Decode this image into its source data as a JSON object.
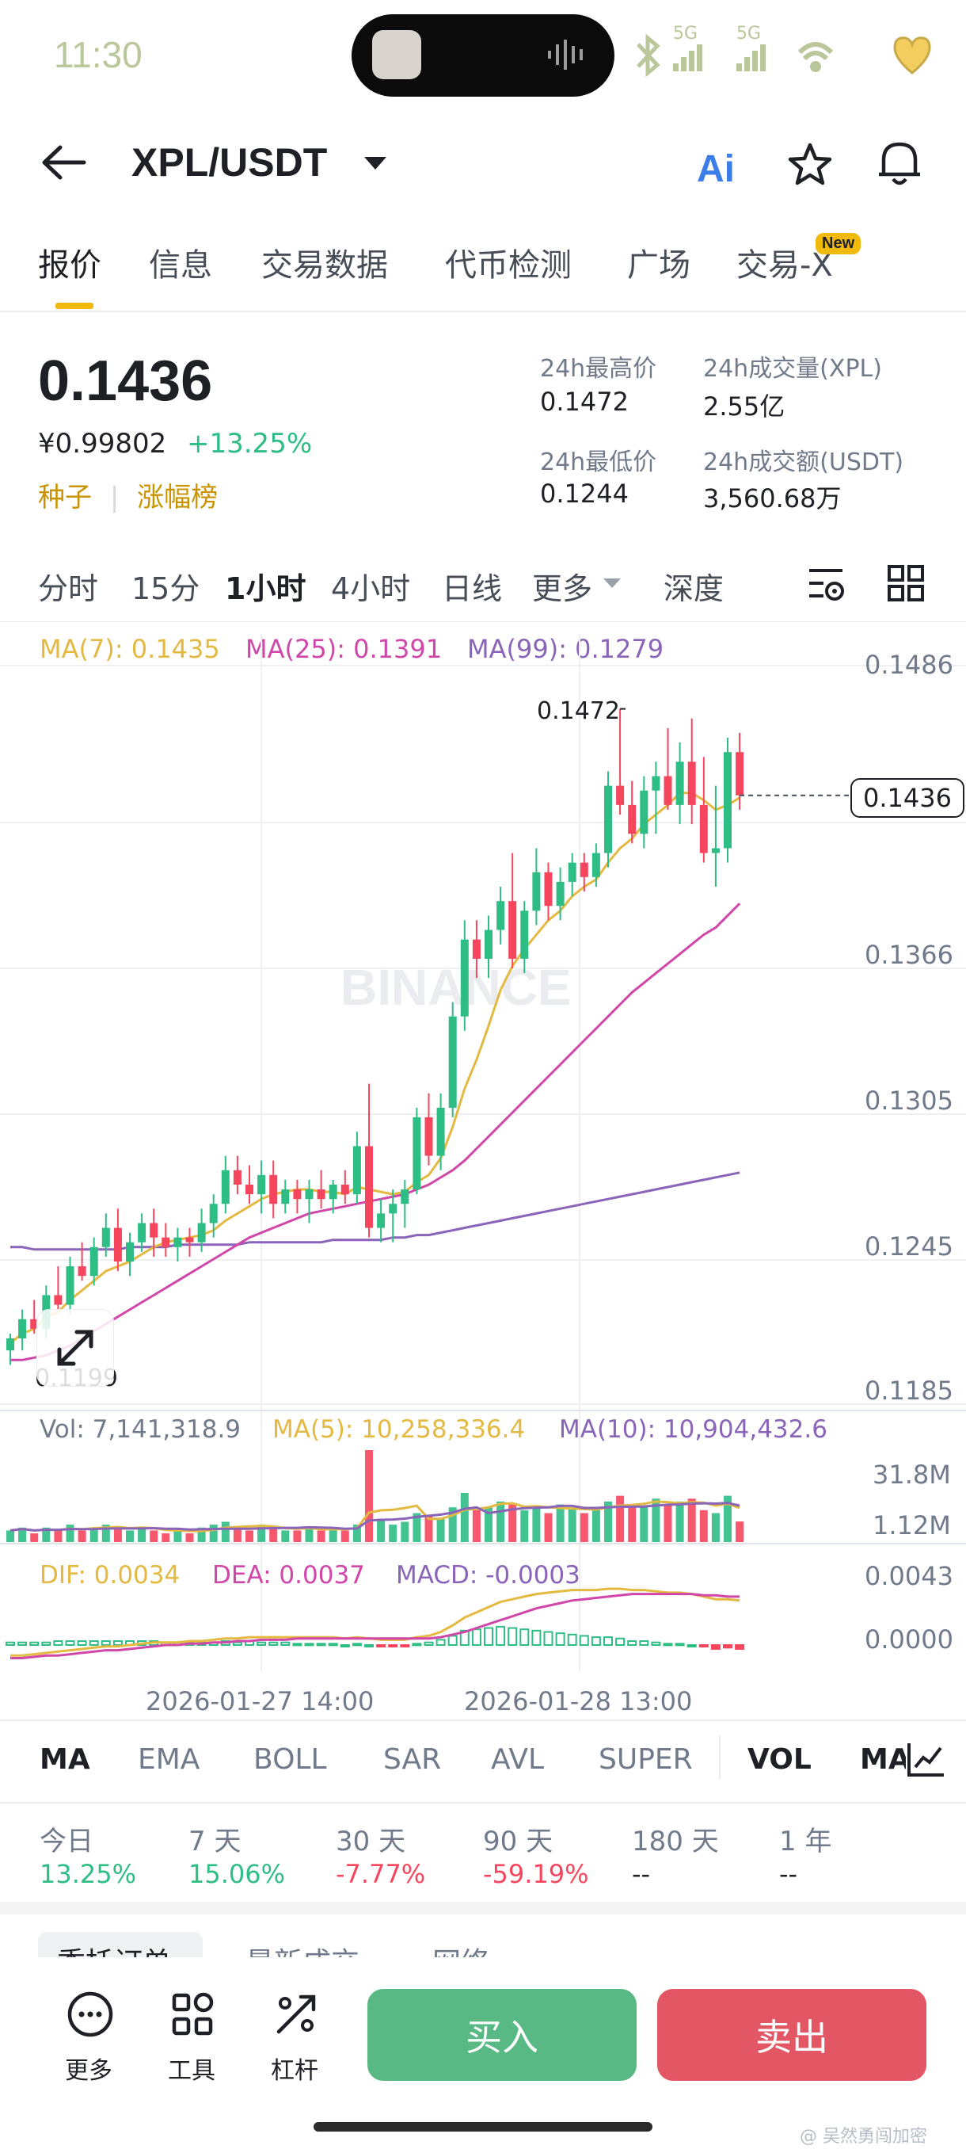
{
  "status": {
    "time": "11:30",
    "network_a": "5G",
    "network_b": "5G"
  },
  "header": {
    "pair": "XPL/USDT",
    "ai_label": "Ai"
  },
  "tabs": [
    {
      "label": "报价"
    },
    {
      "label": "信息"
    },
    {
      "label": "交易数据"
    },
    {
      "label": "代币检测"
    },
    {
      "label": "广场"
    },
    {
      "label": "交易-X"
    }
  ],
  "new_badge": "New",
  "price": {
    "last": "0.1436",
    "cny": "¥0.99802",
    "change": "+13.25%",
    "tag1": "种子",
    "tag_sep": "|",
    "tag2": "涨幅榜"
  },
  "stats": {
    "high_label": "24h最高价",
    "high": "0.1472",
    "vol_label": "24h成交量(XPL)",
    "vol": "2.55亿",
    "low_label": "24h最低价",
    "low": "0.1244",
    "amount_label": "24h成交额(USDT)",
    "amount": "3,560.68万"
  },
  "intervals": [
    "分时",
    "15分",
    "1小时",
    "4小时",
    "日线",
    "更多",
    "深度"
  ],
  "active_interval": "1小时",
  "ma_legend": {
    "ma7": "MA(7): 0.1435",
    "ma25": "MA(25): 0.1391",
    "ma99": "MA(99): 0.1279"
  },
  "colors": {
    "up": "#2ebd85",
    "down": "#f6465d",
    "ma7": "#e4b942",
    "ma25": "#d046a9",
    "ma99": "#8a64b8",
    "buy": "#58b985",
    "sell": "#e35664",
    "accent": "#f0b90b"
  },
  "chart_data": {
    "type": "candlestick",
    "price_axis_ticks": [
      "0.1486",
      "0.1366",
      "0.1305",
      "0.1245",
      "0.1185"
    ],
    "current_price_label": "0.1436",
    "high_marker": "0.1472",
    "low_marker": "0.1199",
    "time_labels": [
      "2026-01-27 14:00",
      "2026-01-28 13:00"
    ],
    "watermark": "BINANCE",
    "candles": [
      [
        0.1205,
        0.1212,
        0.1199,
        0.121
      ],
      [
        0.121,
        0.1222,
        0.1205,
        0.1218
      ],
      [
        0.1218,
        0.1226,
        0.1212,
        0.1214
      ],
      [
        0.1214,
        0.1232,
        0.121,
        0.1228
      ],
      [
        0.1228,
        0.124,
        0.1222,
        0.1224
      ],
      [
        0.1224,
        0.1244,
        0.122,
        0.124
      ],
      [
        0.124,
        0.125,
        0.1234,
        0.1236
      ],
      [
        0.1236,
        0.1252,
        0.1232,
        0.1248
      ],
      [
        0.1248,
        0.1262,
        0.1244,
        0.1256
      ],
      [
        0.1256,
        0.1264,
        0.1238,
        0.1242
      ],
      [
        0.1242,
        0.1254,
        0.1236,
        0.125
      ],
      [
        0.125,
        0.1262,
        0.1246,
        0.1258
      ],
      [
        0.1258,
        0.1264,
        0.1244,
        0.1252
      ],
      [
        0.1252,
        0.1258,
        0.1244,
        0.1248
      ],
      [
        0.1248,
        0.1256,
        0.1242,
        0.1252
      ],
      [
        0.1252,
        0.1256,
        0.1244,
        0.125
      ],
      [
        0.125,
        0.1264,
        0.1246,
        0.1258
      ],
      [
        0.1258,
        0.127,
        0.1252,
        0.1266
      ],
      [
        0.1266,
        0.1286,
        0.1262,
        0.128
      ],
      [
        0.128,
        0.1286,
        0.127,
        0.1274
      ],
      [
        0.1274,
        0.1282,
        0.1266,
        0.127
      ],
      [
        0.127,
        0.1284,
        0.1262,
        0.1278
      ],
      [
        0.1278,
        0.1284,
        0.126,
        0.1266
      ],
      [
        0.1266,
        0.1276,
        0.1262,
        0.1272
      ],
      [
        0.1272,
        0.1276,
        0.1262,
        0.1268
      ],
      [
        0.1268,
        0.1276,
        0.1258,
        0.1272
      ],
      [
        0.1272,
        0.128,
        0.1264,
        0.1268
      ],
      [
        0.1268,
        0.1276,
        0.1262,
        0.1274
      ],
      [
        0.1274,
        0.128,
        0.1266,
        0.127
      ],
      [
        0.127,
        0.1296,
        0.1266,
        0.129
      ],
      [
        0.129,
        0.1316,
        0.1252,
        0.1256
      ],
      [
        0.1256,
        0.1268,
        0.125,
        0.1262
      ],
      [
        0.1262,
        0.1272,
        0.125,
        0.1266
      ],
      [
        0.1266,
        0.1276,
        0.1256,
        0.1272
      ],
      [
        0.1272,
        0.1306,
        0.127,
        0.1302
      ],
      [
        0.1302,
        0.1312,
        0.1282,
        0.1286
      ],
      [
        0.1286,
        0.1312,
        0.128,
        0.1306
      ],
      [
        0.1306,
        0.135,
        0.1302,
        0.1344
      ],
      [
        0.1344,
        0.1384,
        0.1338,
        0.1376
      ],
      [
        0.1376,
        0.1384,
        0.136,
        0.1368
      ],
      [
        0.1368,
        0.1386,
        0.136,
        0.138
      ],
      [
        0.138,
        0.1398,
        0.1374,
        0.1392
      ],
      [
        0.1392,
        0.1412,
        0.1364,
        0.1368
      ],
      [
        0.1368,
        0.1392,
        0.1362,
        0.1388
      ],
      [
        0.1388,
        0.1414,
        0.1382,
        0.1404
      ],
      [
        0.1404,
        0.1408,
        0.1384,
        0.139
      ],
      [
        0.139,
        0.1406,
        0.1384,
        0.14
      ],
      [
        0.14,
        0.1412,
        0.1394,
        0.1408
      ],
      [
        0.1408,
        0.1412,
        0.1396,
        0.1402
      ],
      [
        0.1402,
        0.1416,
        0.1398,
        0.1412
      ],
      [
        0.1412,
        0.1446,
        0.1406,
        0.144
      ],
      [
        0.144,
        0.1472,
        0.1428,
        0.1432
      ],
      [
        0.1432,
        0.1442,
        0.1416,
        0.142
      ],
      [
        0.142,
        0.1444,
        0.1414,
        0.1438
      ],
      [
        0.1438,
        0.145,
        0.142,
        0.1444
      ],
      [
        0.1444,
        0.1464,
        0.143,
        0.1432
      ],
      [
        0.1432,
        0.1458,
        0.1424,
        0.145
      ],
      [
        0.145,
        0.1468,
        0.1424,
        0.1432
      ],
      [
        0.1432,
        0.1452,
        0.1408,
        0.1412
      ],
      [
        0.1412,
        0.144,
        0.1398,
        0.1414
      ],
      [
        0.1414,
        0.146,
        0.1408,
        0.1454
      ],
      [
        0.1454,
        0.1462,
        0.143,
        0.1436
      ]
    ],
    "ma7": [
      0.1208,
      0.1212,
      0.1214,
      0.1219,
      0.1221,
      0.1226,
      0.123,
      0.1234,
      0.1238,
      0.124,
      0.1242,
      0.1245,
      0.1248,
      0.125,
      0.1251,
      0.1252,
      0.1253,
      0.1255,
      0.1259,
      0.1262,
      0.1265,
      0.1268,
      0.127,
      0.1271,
      0.1272,
      0.1272,
      0.1271,
      0.1271,
      0.127,
      0.1273,
      0.1272,
      0.1271,
      0.127,
      0.1271,
      0.1275,
      0.1278,
      0.1285,
      0.1298,
      0.1314,
      0.1326,
      0.134,
      0.1355,
      0.1365,
      0.1372,
      0.1378,
      0.1384,
      0.1388,
      0.1394,
      0.1398,
      0.1401,
      0.1408,
      0.1414,
      0.1418,
      0.1424,
      0.1428,
      0.1432,
      0.1437,
      0.1437,
      0.1434,
      0.143,
      0.1432,
      0.1435
    ],
    "ma25": [
      0.1201,
      0.1201,
      0.1202,
      0.1203,
      0.1205,
      0.1207,
      0.121,
      0.1213,
      0.1216,
      0.1219,
      0.1222,
      0.1225,
      0.1228,
      0.1231,
      0.1234,
      0.1237,
      0.124,
      0.1243,
      0.1246,
      0.1249,
      0.1252,
      0.1254,
      0.1256,
      0.1258,
      0.126,
      0.1262,
      0.1263,
      0.1264,
      0.1265,
      0.1266,
      0.1267,
      0.1268,
      0.1269,
      0.127,
      0.1272,
      0.1274,
      0.1277,
      0.128,
      0.1284,
      0.1289,
      0.1294,
      0.1299,
      0.1304,
      0.1309,
      0.1314,
      0.1319,
      0.1324,
      0.1329,
      0.1334,
      0.1339,
      0.1344,
      0.1349,
      0.1354,
      0.1358,
      0.1362,
      0.1366,
      0.137,
      0.1374,
      0.1378,
      0.1381,
      0.1386,
      0.1391
    ],
    "ma99": [
      0.1248,
      0.1248,
      0.1247,
      0.1247,
      0.1247,
      0.1247,
      0.1247,
      0.1247,
      0.1247,
      0.1247,
      0.1248,
      0.1248,
      0.1248,
      0.1248,
      0.1249,
      0.1249,
      0.1249,
      0.1249,
      0.1249,
      0.1249,
      0.125,
      0.125,
      0.125,
      0.125,
      0.125,
      0.125,
      0.125,
      0.1251,
      0.1251,
      0.1251,
      0.1251,
      0.1251,
      0.1252,
      0.1252,
      0.1253,
      0.1253,
      0.1254,
      0.1255,
      0.1256,
      0.1257,
      0.1258,
      0.1259,
      0.126,
      0.1261,
      0.1262,
      0.1263,
      0.1264,
      0.1265,
      0.1266,
      0.1267,
      0.1268,
      0.1269,
      0.127,
      0.1271,
      0.1272,
      0.1273,
      0.1274,
      0.1275,
      0.1276,
      0.1277,
      0.1278,
      0.1279
    ],
    "volume_legend": {
      "vol": "Vol: 7,141,318.9",
      "ma5": "MA(5): 10,258,336.4",
      "ma10": "MA(10): 10,904,432.6"
    },
    "volume_axis": [
      "31.8M",
      "1.12M"
    ],
    "volumes": [
      4,
      5,
      3,
      5,
      4,
      6,
      4,
      5,
      6,
      5,
      4,
      5,
      4,
      3,
      4,
      3,
      5,
      6,
      7,
      5,
      4,
      6,
      5,
      4,
      4,
      5,
      4,
      5,
      4,
      6,
      31.8,
      8,
      6,
      7,
      10,
      9,
      8,
      12,
      17,
      11,
      12,
      14,
      13,
      11,
      12,
      10,
      13,
      12,
      10,
      11,
      14,
      16,
      13,
      12,
      15,
      13,
      14,
      15,
      11,
      10,
      16,
      7.1
    ],
    "macd_legend": {
      "dif": "DIF: 0.0034",
      "dea": "DEA: 0.0037",
      "macd": "MACD: -0.0003"
    },
    "macd_axis": [
      "0.0043",
      "0.0000"
    ],
    "dif": [
      -0.0008,
      -0.0008,
      -0.0007,
      -0.0006,
      -0.0005,
      -0.0004,
      -0.0003,
      -0.0002,
      -0.0001,
      -0.0001,
      0.0,
      0.0001,
      0.0002,
      0.0002,
      0.0002,
      0.0003,
      0.0003,
      0.0004,
      0.0005,
      0.0005,
      0.0006,
      0.0006,
      0.0006,
      0.0006,
      0.0006,
      0.0006,
      0.0006,
      0.0006,
      0.0005,
      0.0006,
      0.0005,
      0.0004,
      0.0004,
      0.0004,
      0.0006,
      0.0007,
      0.001,
      0.0015,
      0.0021,
      0.0025,
      0.0029,
      0.0033,
      0.0035,
      0.0037,
      0.0039,
      0.004,
      0.0041,
      0.0042,
      0.0042,
      0.0042,
      0.0043,
      0.0043,
      0.0042,
      0.0042,
      0.0041,
      0.004,
      0.004,
      0.0039,
      0.0037,
      0.0035,
      0.0035,
      0.0034
    ],
    "dea": [
      -0.001,
      -0.001,
      -0.0009,
      -0.0008,
      -0.0008,
      -0.0007,
      -0.0006,
      -0.0005,
      -0.0004,
      -0.0004,
      -0.0003,
      -0.0002,
      -0.0001,
      0.0,
      0.0,
      0.0001,
      0.0001,
      0.0002,
      0.0002,
      0.0003,
      0.0003,
      0.0004,
      0.0004,
      0.0004,
      0.0005,
      0.0005,
      0.0005,
      0.0005,
      0.0005,
      0.0005,
      0.0005,
      0.0005,
      0.0005,
      0.0005,
      0.0005,
      0.0005,
      0.0006,
      0.0008,
      0.001,
      0.0013,
      0.0016,
      0.0019,
      0.0022,
      0.0025,
      0.0028,
      0.003,
      0.0032,
      0.0034,
      0.0035,
      0.0036,
      0.0037,
      0.0038,
      0.0039,
      0.0039,
      0.0039,
      0.0039,
      0.0039,
      0.0039,
      0.0038,
      0.0038,
      0.0037,
      0.0037
    ]
  },
  "indicators": [
    "MA",
    "EMA",
    "BOLL",
    "SAR",
    "AVL",
    "SUPER",
    "VOL",
    "MA"
  ],
  "periods": [
    {
      "label": "今日",
      "value": "13.25%",
      "dir": "up"
    },
    {
      "label": "7 天",
      "value": "15.06%",
      "dir": "up"
    },
    {
      "label": "30 天",
      "value": "-7.77%",
      "dir": "down"
    },
    {
      "label": "90 天",
      "value": "-59.19%",
      "dir": "down"
    },
    {
      "label": "180 天",
      "value": "--",
      "dir": "none"
    },
    {
      "label": "1 年",
      "value": "--",
      "dir": "none"
    }
  ],
  "subtabs_peek": [
    "委托订单",
    "最新成交",
    "网络"
  ],
  "bottom": {
    "more": "更多",
    "tools": "工具",
    "leverage": "杠杆",
    "buy": "买入",
    "sell": "卖出"
  },
  "footer_watermark": "@ 吴然勇闯加密"
}
